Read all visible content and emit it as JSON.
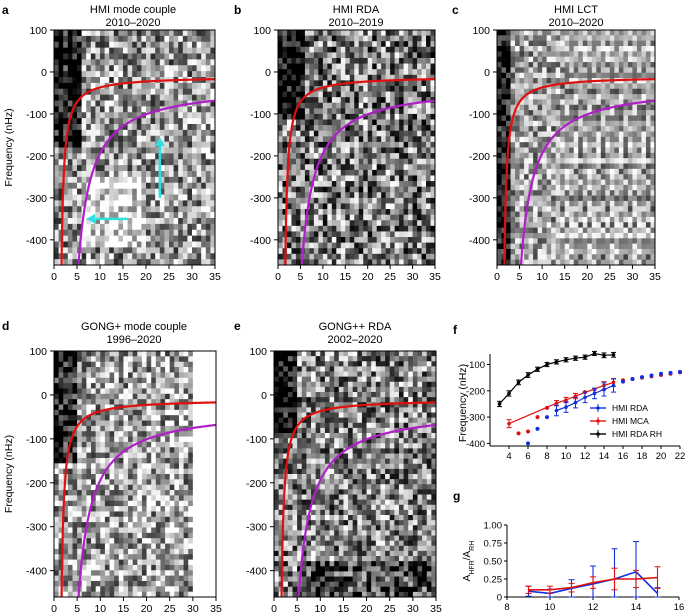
{
  "panels": {
    "a": {
      "letter": "a",
      "title1": "HMI mode couple",
      "title2": "2010–2020"
    },
    "b": {
      "letter": "b",
      "title1": "HMI RDA",
      "title2": "2010–2019"
    },
    "c": {
      "letter": "c",
      "title1": "HMI LCT",
      "title2": "2010–2020"
    },
    "d": {
      "letter": "d",
      "title1": "GONG+ mode couple",
      "title2": "1996–2020"
    },
    "e": {
      "letter": "e",
      "title1": "GONG++ RDA",
      "title2": "2002–2020"
    },
    "f": {
      "letter": "f"
    },
    "g": {
      "letter": "g"
    }
  },
  "chart_data": [
    {
      "id": "a",
      "type": "heatmap",
      "title": "HMI mode couple 2010–2020",
      "ylabel": "Frequency (nHz)",
      "xlabel": "",
      "xlim": [
        0,
        35
      ],
      "ylim": [
        -460,
        100
      ],
      "xticks": [
        0,
        5,
        10,
        15,
        20,
        25,
        30,
        35
      ],
      "yticks": [
        100,
        0,
        -100,
        -200,
        -300,
        -400
      ],
      "curves": [
        {
          "name": "red",
          "color": "#e01010"
        },
        {
          "name": "magenta",
          "color": "#b020c8"
        }
      ],
      "annotations": [
        {
          "type": "arrow",
          "color": "#30e0e0",
          "from": [
            23,
            -300
          ],
          "to": [
            23,
            -155
          ]
        },
        {
          "type": "arrow",
          "color": "#30e0e0",
          "from": [
            16,
            -350
          ],
          "to": [
            7,
            -350
          ]
        }
      ]
    },
    {
      "id": "b",
      "type": "heatmap",
      "title": "HMI RDA 2010–2019",
      "xlim": [
        0,
        35
      ],
      "ylim": [
        -460,
        100
      ],
      "xticks": [
        0,
        5,
        10,
        15,
        20,
        25,
        30,
        35
      ],
      "yticks": [
        100,
        0,
        -100,
        -200,
        -300,
        -400
      ]
    },
    {
      "id": "c",
      "type": "heatmap",
      "title": "HMI LCT 2010–2020",
      "xlim": [
        0,
        35
      ],
      "ylim": [
        -460,
        100
      ],
      "xticks": [
        0,
        5,
        10,
        15,
        20,
        25,
        30,
        35
      ],
      "yticks": [
        100,
        0,
        -100,
        -200,
        -300,
        -400
      ]
    },
    {
      "id": "d",
      "type": "heatmap",
      "title": "GONG+ mode couple 1996–2020",
      "ylabel": "Frequency (nHz)",
      "xlim": [
        0,
        35
      ],
      "ylim": [
        -460,
        100
      ],
      "xticks": [
        0,
        5,
        10,
        15,
        20,
        25,
        30,
        35
      ],
      "yticks": [
        100,
        0,
        -100,
        -200,
        -300,
        -400
      ]
    },
    {
      "id": "e",
      "type": "heatmap",
      "title": "GONG++ RDA 2002–2020",
      "xlim": [
        0,
        35
      ],
      "ylim": [
        -460,
        100
      ],
      "xticks": [
        0,
        5,
        10,
        15,
        20,
        25,
        30,
        35
      ],
      "yticks": [
        100,
        0,
        -100,
        -200,
        -300,
        -400
      ]
    },
    {
      "id": "f",
      "type": "scatter",
      "ylabel": "Frequency (nHz)",
      "xlim": [
        2,
        22
      ],
      "ylim": [
        -410,
        -60
      ],
      "xticks": [
        4,
        6,
        8,
        10,
        12,
        14,
        16,
        18,
        20,
        22
      ],
      "yticks": [
        -100,
        -200,
        -300,
        -400
      ],
      "legend": [
        "HMI RDA",
        "HMI MCA",
        "HMI RDA RH"
      ],
      "series": [
        {
          "name": "HMI RDA RH",
          "color": "#000000",
          "line": true,
          "x": [
            3,
            4,
            5,
            6,
            7,
            8,
            9,
            10,
            11,
            12,
            13,
            14,
            15
          ],
          "y": [
            -250,
            -210,
            -168,
            -140,
            -118,
            -100,
            -90,
            -82,
            -76,
            -72,
            -58,
            -65,
            -63
          ],
          "err": [
            10,
            10,
            9,
            9,
            8,
            8,
            8,
            8,
            8,
            8,
            8,
            9,
            9
          ]
        },
        {
          "name": "HMI MCA",
          "color": "#e01010",
          "line": true,
          "x": [
            4,
            5,
            6,
            7,
            8,
            9,
            10,
            11,
            12,
            13,
            14,
            15,
            16,
            17,
            18,
            19,
            20,
            21,
            22
          ],
          "y": [
            -325,
            -362,
            -355,
            -300,
            -265,
            -247,
            -235,
            -220,
            -205,
            -195,
            -180,
            -168,
            -160,
            -155,
            -150,
            -145,
            -140,
            -135,
            -130
          ],
          "err": [
            15,
            0,
            0,
            0,
            0,
            10,
            10,
            10,
            0,
            0,
            15,
            15,
            0,
            0,
            0,
            0,
            0,
            0,
            0
          ]
        },
        {
          "name": "HMI RDA",
          "color": "#1030e0",
          "line": true,
          "x": [
            6,
            7,
            8,
            9,
            10,
            11,
            12,
            13,
            14,
            15,
            16,
            17,
            18,
            19,
            20,
            21,
            22
          ],
          "y": [
            -400,
            -345,
            -300,
            -275,
            -262,
            -245,
            -225,
            -210,
            -195,
            -180,
            -165,
            -155,
            -148,
            -142,
            -135,
            -132,
            -128
          ],
          "err": [
            0,
            0,
            0,
            20,
            20,
            20,
            20,
            20,
            25,
            25,
            0,
            0,
            0,
            0,
            0,
            0,
            0
          ]
        }
      ]
    },
    {
      "id": "g",
      "type": "line",
      "ylabel": "A_HFR/A_RH",
      "xlim": [
        8,
        16
      ],
      "ylim": [
        0,
        1.0
      ],
      "xticks": [
        8,
        10,
        12,
        14,
        16
      ],
      "ytick_labels": [
        "0",
        "0.25",
        "0.50",
        "0.75",
        "1.00"
      ],
      "series": [
        {
          "name": "HMI RDA",
          "color": "#1030e0",
          "x": [
            9,
            10,
            11,
            12,
            13,
            14,
            15
          ],
          "y": [
            0.08,
            0.05,
            0.12,
            0.18,
            0.25,
            0.35,
            0.05
          ],
          "err": [
            0.07,
            0.06,
            0.12,
            0.25,
            0.42,
            0.42,
            0.08
          ]
        },
        {
          "name": "HMI MCA",
          "color": "#e01010",
          "x": [
            9,
            10,
            11,
            12,
            13,
            14,
            15
          ],
          "y": [
            0.1,
            0.1,
            0.13,
            0.2,
            0.25,
            0.25,
            0.27
          ],
          "err": [
            0.05,
            0.05,
            0.06,
            0.08,
            0.15,
            0.12,
            0.15
          ]
        }
      ]
    }
  ]
}
